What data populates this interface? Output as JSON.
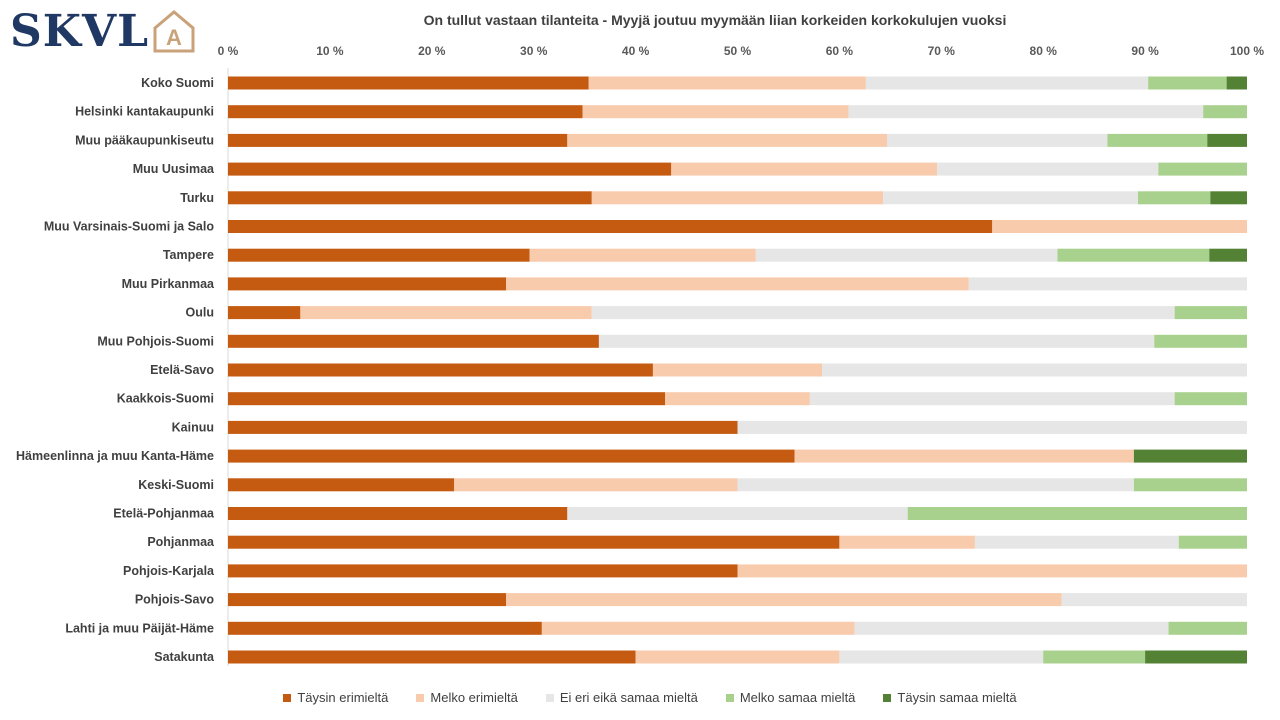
{
  "logo": {
    "text": "SKVL",
    "mark": "A"
  },
  "chart_data": {
    "type": "bar",
    "orientation": "horizontal-stacked-100",
    "title": "On tullut vastaan tilanteita - Myyjä joutuu myymään liian korkeiden korkokulujen vuoksi",
    "xlim": [
      0,
      100
    ],
    "x_ticks": [
      "0 %",
      "10 %",
      "20 %",
      "30 %",
      "40 %",
      "50 %",
      "60 %",
      "70 %",
      "80 %",
      "90 %",
      "100 %"
    ],
    "grid": false,
    "legend_position": "bottom",
    "categories": [
      "Koko Suomi",
      "Helsinki kantakaupunki",
      "Muu pääkaupunkiseutu",
      "Muu Uusimaa",
      "Turku",
      "Muu Varsinais-Suomi ja Salo",
      "Tampere",
      "Muu Pirkanmaa",
      "Oulu",
      "Muu Pohjois-Suomi",
      "Etelä-Savo",
      "Kaakkois-Suomi",
      "Kainuu",
      "Hämeenlinna ja muu Kanta-Häme",
      "Keski-Suomi",
      "Etelä-Pohjanmaa",
      "Pohjanmaa",
      "Pohjois-Karjala",
      "Pohjois-Savo",
      "Lahti ja muu Päijät-Häme",
      "Satakunta"
    ],
    "series": [
      {
        "name": "Täysin erimieltä",
        "color": "#c55a11",
        "values": [
          35.4,
          34.8,
          33.3,
          43.5,
          35.7,
          75.0,
          29.6,
          27.3,
          7.1,
          36.4,
          41.7,
          42.9,
          50.0,
          55.6,
          22.2,
          33.3,
          60.0,
          50.0,
          27.3,
          30.8,
          40.0
        ]
      },
      {
        "name": "Melko erimieltä",
        "color": "#f8cbad",
        "values": [
          27.2,
          26.1,
          31.4,
          26.1,
          28.6,
          25.0,
          22.2,
          45.4,
          28.6,
          0.0,
          16.6,
          14.2,
          0.0,
          33.3,
          27.8,
          0.0,
          13.3,
          50.0,
          54.5,
          30.7,
          20.0
        ]
      },
      {
        "name": "Ei eri eikä samaa mieltä",
        "color": "#e7e6e6",
        "values": [
          27.7,
          34.8,
          21.6,
          21.7,
          25.0,
          0.0,
          29.6,
          27.3,
          57.2,
          54.5,
          41.7,
          35.8,
          50.0,
          0.0,
          38.9,
          33.4,
          20.0,
          0.0,
          18.2,
          30.8,
          20.0
        ]
      },
      {
        "name": "Melko samaa mieltä",
        "color": "#a9d18e",
        "values": [
          7.7,
          4.3,
          9.8,
          8.7,
          7.1,
          0.0,
          14.9,
          0.0,
          7.1,
          9.1,
          0.0,
          7.1,
          0.0,
          0.0,
          11.1,
          33.3,
          6.7,
          0.0,
          0.0,
          7.7,
          10.0
        ]
      },
      {
        "name": "Täysin samaa mieltä",
        "color": "#548235",
        "values": [
          2.0,
          0.0,
          3.9,
          0.0,
          3.6,
          0.0,
          3.7,
          0.0,
          0.0,
          0.0,
          0.0,
          0.0,
          0.0,
          11.1,
          0.0,
          0.0,
          0.0,
          0.0,
          0.0,
          0.0,
          10.0
        ]
      }
    ]
  }
}
